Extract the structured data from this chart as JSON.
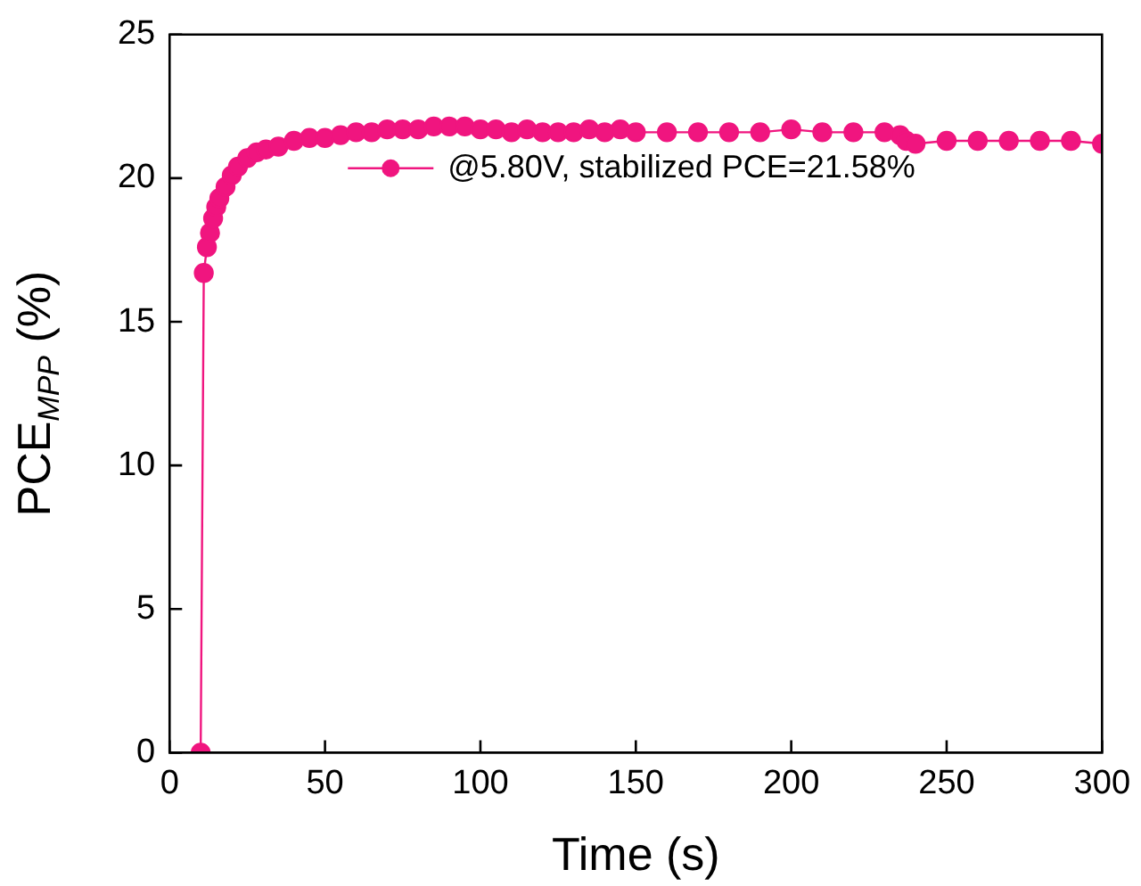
{
  "chart_data": {
    "type": "line",
    "xlabel": "Time (s)",
    "ylabel": "PCE$_{MPP}$ (%)",
    "x": [
      10,
      11,
      12,
      13,
      14,
      15,
      16,
      18,
      20,
      22,
      25,
      28,
      31,
      35,
      40,
      45,
      50,
      55,
      60,
      65,
      70,
      75,
      80,
      85,
      90,
      95,
      100,
      105,
      110,
      115,
      120,
      125,
      130,
      135,
      140,
      145,
      150,
      160,
      170,
      180,
      190,
      200,
      210,
      220,
      230,
      235,
      237,
      240,
      250,
      260,
      270,
      280,
      290,
      300
    ],
    "series": [
      {
        "name": "@5.80V, stabilized PCE=21.58%",
        "color": "#f0157f",
        "values": [
          0,
          16.7,
          17.6,
          18.1,
          18.6,
          19.0,
          19.3,
          19.7,
          20.1,
          20.4,
          20.7,
          20.9,
          21.0,
          21.1,
          21.3,
          21.4,
          21.4,
          21.5,
          21.6,
          21.6,
          21.7,
          21.7,
          21.7,
          21.8,
          21.8,
          21.8,
          21.7,
          21.7,
          21.6,
          21.7,
          21.6,
          21.6,
          21.6,
          21.7,
          21.6,
          21.7,
          21.6,
          21.6,
          21.6,
          21.6,
          21.6,
          21.7,
          21.6,
          21.6,
          21.6,
          21.5,
          21.3,
          21.2,
          21.3,
          21.3,
          21.3,
          21.3,
          21.3,
          21.2
        ]
      }
    ],
    "xlim": [
      0,
      300
    ],
    "xticks": [
      0,
      50,
      100,
      150,
      200,
      250,
      300
    ],
    "ylim": [
      0,
      25
    ],
    "yticks": [
      0,
      5,
      10,
      15,
      20,
      25
    ],
    "grid": false,
    "legend": "top right",
    "marker": "circle",
    "line_style": "solid"
  }
}
